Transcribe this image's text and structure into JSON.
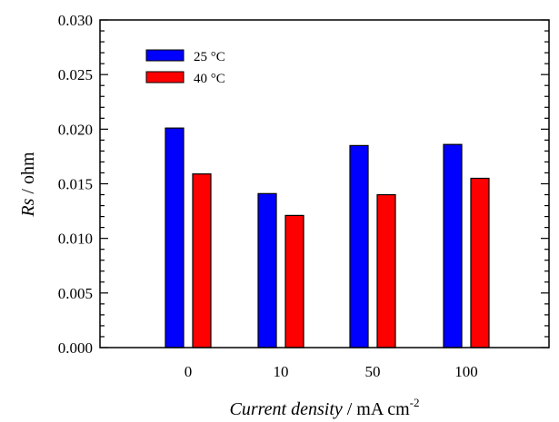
{
  "chart_data": {
    "type": "bar",
    "categories": [
      "0",
      "10",
      "50",
      "100"
    ],
    "series": [
      {
        "name": "25 °C",
        "values": [
          0.0201,
          0.0141,
          0.0185,
          0.0186
        ],
        "color": "#0000ff"
      },
      {
        "name": "40 °C",
        "values": [
          0.0159,
          0.0121,
          0.014,
          0.0155
        ],
        "color": "#ff0000"
      }
    ],
    "xlabel": {
      "italic": "Current density",
      "plain": " / mA cm",
      "sup": "-2"
    },
    "ylabel": {
      "italic": "Rs",
      "plain": " / ohm"
    },
    "ylim": [
      0,
      0.03
    ],
    "yticks": [
      "0.000",
      "0.005",
      "0.010",
      "0.015",
      "0.020",
      "0.025",
      "0.030"
    ],
    "grid": false,
    "legend_position": "top-left"
  }
}
